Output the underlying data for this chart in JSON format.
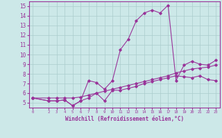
{
  "line1_x": [
    0,
    2,
    3,
    4,
    5,
    6,
    7,
    8,
    9,
    10,
    11,
    12,
    13,
    14,
    15,
    16,
    17,
    18,
    19,
    20,
    21,
    22,
    23
  ],
  "line1_y": [
    5.5,
    5.2,
    5.2,
    5.3,
    4.7,
    5.2,
    7.3,
    7.1,
    6.4,
    7.3,
    10.5,
    11.6,
    13.5,
    14.3,
    14.6,
    14.3,
    15.1,
    7.3,
    8.9,
    9.3,
    9.0,
    8.9,
    9.4
  ],
  "line2_x": [
    0,
    2,
    3,
    4,
    5,
    6,
    7,
    8,
    9,
    10,
    11,
    12,
    13,
    14,
    15,
    16,
    17,
    18,
    19,
    20,
    21,
    22,
    23
  ],
  "line2_y": [
    5.5,
    5.5,
    5.5,
    5.5,
    5.5,
    5.6,
    5.8,
    6.0,
    6.2,
    6.4,
    6.6,
    6.8,
    7.0,
    7.2,
    7.4,
    7.6,
    7.8,
    8.1,
    8.3,
    8.5,
    8.6,
    8.7,
    8.9
  ],
  "line3_x": [
    0,
    2,
    3,
    4,
    5,
    6,
    7,
    8,
    9,
    10,
    11,
    12,
    13,
    14,
    15,
    16,
    17,
    18,
    19,
    20,
    21,
    22,
    23
  ],
  "line3_y": [
    5.5,
    5.2,
    5.2,
    5.3,
    4.7,
    5.2,
    5.5,
    6.0,
    5.2,
    6.3,
    6.3,
    6.5,
    6.7,
    7.0,
    7.2,
    7.4,
    7.6,
    7.8,
    7.7,
    7.6,
    7.8,
    7.4,
    7.3
  ],
  "color": "#993399",
  "bg_color": "#cce8e8",
  "grid_color": "#aacccc",
  "xlabel": "Windchill (Refroidissement éolien,°C)",
  "ylim": [
    4.5,
    15.5
  ],
  "xlim": [
    -0.5,
    23.5
  ],
  "yticks": [
    5,
    6,
    7,
    8,
    9,
    10,
    11,
    12,
    13,
    14,
    15
  ],
  "xticks": [
    0,
    2,
    3,
    4,
    5,
    6,
    7,
    8,
    9,
    10,
    11,
    12,
    13,
    14,
    15,
    16,
    17,
    18,
    19,
    20,
    21,
    22,
    23
  ]
}
